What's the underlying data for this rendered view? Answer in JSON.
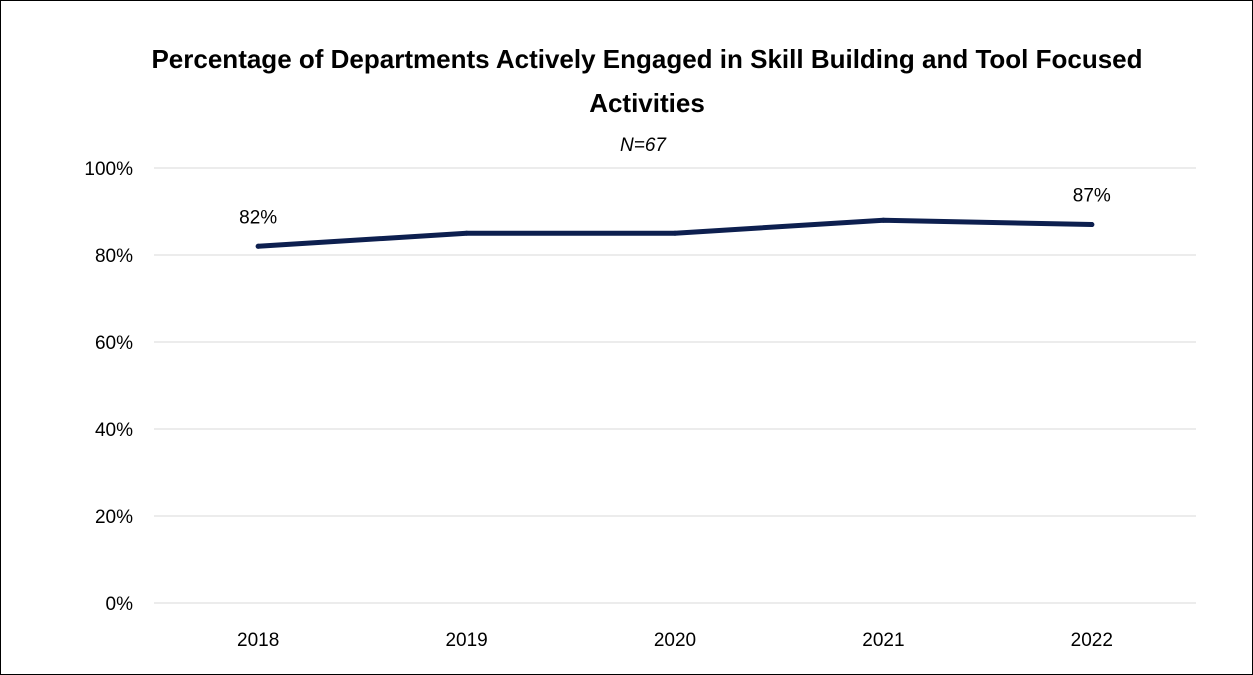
{
  "chart_data": {
    "type": "line",
    "title_line1": "Percentage of Departments Actively Engaged in Skill Building and Tool Focused",
    "title_line2": "Activities",
    "subtitle": "N=67",
    "categories": [
      "2018",
      "2019",
      "2020",
      "2021",
      "2022"
    ],
    "series": [
      {
        "values": [
          82,
          85,
          85,
          88,
          87
        ]
      }
    ],
    "data_labels": [
      {
        "index": 0,
        "text": "82%"
      },
      {
        "index": 4,
        "text": "87%"
      }
    ],
    "y_ticks": [
      "0%",
      "20%",
      "40%",
      "60%",
      "80%",
      "100%"
    ],
    "ylim": [
      0,
      100
    ],
    "grid": true,
    "legend": "none",
    "line_color": "#0d1f4f",
    "grid_color": "#d9d9d9"
  }
}
